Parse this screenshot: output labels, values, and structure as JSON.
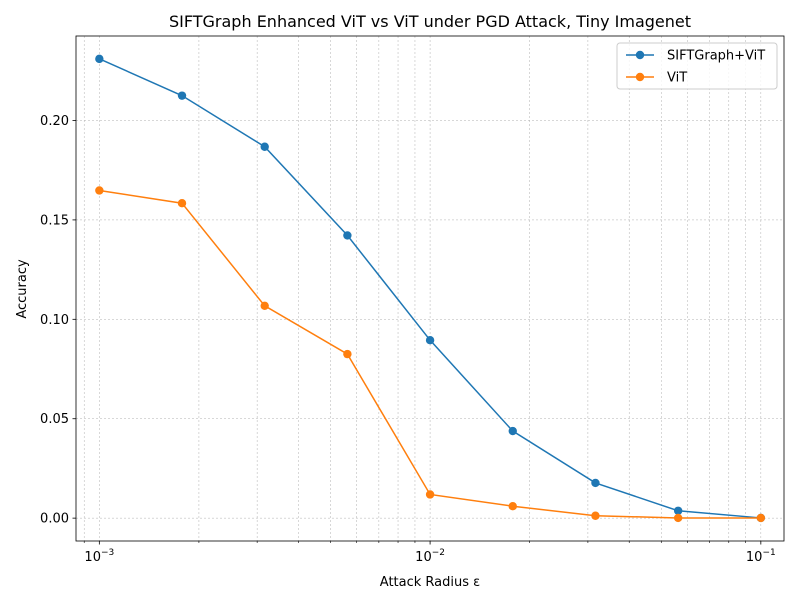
{
  "chart_data": {
    "type": "line",
    "title": "SIFTGraph Enhanced ViT vs ViT under PGD Attack, Tiny Imagenet",
    "xlabel": "Attack Radius ε",
    "ylabel": "Accuracy",
    "xscale": "log",
    "xlim": [
      0.00085,
      0.1175
    ],
    "ylim": [
      -0.0115,
      0.2425
    ],
    "grid": true,
    "legend_position": "top-right",
    "x": [
      0.001,
      0.001778,
      0.003162,
      0.005623,
      0.01,
      0.01778,
      0.03162,
      0.05623,
      0.1
    ],
    "series": [
      {
        "name": "SIFTGraph+ViT",
        "color": "#1f77b4",
        "values": [
          0.231,
          0.2125,
          0.1868,
          0.1422,
          0.0895,
          0.0438,
          0.0177,
          0.0037,
          0.0001
        ]
      },
      {
        "name": "ViT",
        "color": "#ff7f0e",
        "values": [
          0.1648,
          0.1584,
          0.1068,
          0.0825,
          0.0119,
          0.006,
          0.0012,
          0.0001,
          0.0001
        ]
      }
    ],
    "x_ticks": [
      {
        "value": 0.001,
        "base": "10",
        "exp": "−3"
      },
      {
        "value": 0.01,
        "base": "10",
        "exp": "−2"
      },
      {
        "value": 0.1,
        "base": "10",
        "exp": "−1"
      }
    ],
    "y_ticks": [
      {
        "value": 0.0,
        "label": "0.00"
      },
      {
        "value": 0.05,
        "label": "0.05"
      },
      {
        "value": 0.1,
        "label": "0.10"
      },
      {
        "value": 0.15,
        "label": "0.15"
      },
      {
        "value": 0.2,
        "label": "0.20"
      }
    ]
  }
}
